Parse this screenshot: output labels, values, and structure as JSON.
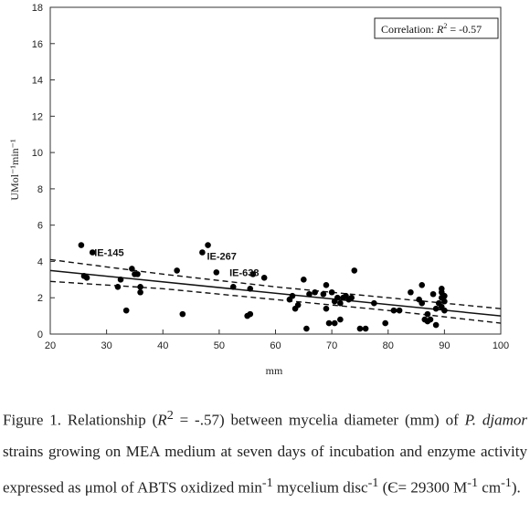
{
  "chart_data": {
    "type": "scatter",
    "xlabel": "mm",
    "ylabel": "UMol⁻¹min⁻¹",
    "xlim": [
      20,
      100
    ],
    "ylim": [
      0,
      18
    ],
    "xticks": [
      20,
      30,
      40,
      50,
      60,
      70,
      80,
      90,
      100
    ],
    "yticks": [
      0,
      2,
      4,
      6,
      8,
      10,
      12,
      14,
      16,
      18
    ],
    "grid": false,
    "annotation": {
      "prefix": "Correlation: ",
      "r2": "R",
      "sup": "2",
      "suffix": " = -0.57"
    },
    "fit_line": {
      "x": [
        20,
        100
      ],
      "y": [
        3.5,
        1.0
      ]
    },
    "ci_upper": {
      "x": [
        20,
        40,
        60,
        80,
        100
      ],
      "y": [
        4.1,
        3.3,
        2.6,
        2.0,
        1.4
      ]
    },
    "ci_lower": {
      "x": [
        20,
        40,
        60,
        80,
        100
      ],
      "y": [
        2.9,
        2.5,
        1.9,
        1.3,
        0.6
      ]
    },
    "point_labels": [
      {
        "text": "IE-145",
        "x": 27.5,
        "y": 4.5
      },
      {
        "text": "IE-267",
        "x": 47.5,
        "y": 4.3
      },
      {
        "text": "IE-638",
        "x": 51.5,
        "y": 3.4
      }
    ],
    "points": [
      [
        25.5,
        4.9
      ],
      [
        26,
        3.2
      ],
      [
        26.5,
        3.1
      ],
      [
        27.5,
        4.5
      ],
      [
        32,
        2.6
      ],
      [
        32.5,
        3.0
      ],
      [
        33.5,
        1.3
      ],
      [
        34.5,
        3.6
      ],
      [
        35,
        3.3
      ],
      [
        35.5,
        3.3
      ],
      [
        36,
        2.6
      ],
      [
        36,
        2.3
      ],
      [
        42.5,
        3.5
      ],
      [
        43.5,
        1.1
      ],
      [
        47,
        4.5
      ],
      [
        48,
        4.9
      ],
      [
        49.5,
        3.4
      ],
      [
        52.5,
        2.6
      ],
      [
        55,
        1.0
      ],
      [
        55.5,
        1.1
      ],
      [
        55.5,
        2.5
      ],
      [
        56,
        3.3
      ],
      [
        58,
        3.1
      ],
      [
        62.5,
        1.9
      ],
      [
        63,
        2.1
      ],
      [
        63.5,
        1.4
      ],
      [
        64,
        1.6
      ],
      [
        65,
        3.0
      ],
      [
        65.5,
        0.3
      ],
      [
        66,
        2.2
      ],
      [
        67,
        2.3
      ],
      [
        68.5,
        2.2
      ],
      [
        69,
        1.4
      ],
      [
        69,
        2.7
      ],
      [
        69.5,
        0.6
      ],
      [
        70,
        2.3
      ],
      [
        70.5,
        1.8
      ],
      [
        70.5,
        0.6
      ],
      [
        71,
        2.0
      ],
      [
        71.5,
        1.7
      ],
      [
        71.5,
        0.8
      ],
      [
        72,
        2.0
      ],
      [
        72.5,
        2.1
      ],
      [
        73,
        1.9
      ],
      [
        73.5,
        2.0
      ],
      [
        74,
        3.5
      ],
      [
        75,
        0.3
      ],
      [
        76,
        0.3
      ],
      [
        77.5,
        1.7
      ],
      [
        79.5,
        0.6
      ],
      [
        81,
        1.3
      ],
      [
        82,
        1.3
      ],
      [
        84,
        2.3
      ],
      [
        85.5,
        1.9
      ],
      [
        86,
        2.7
      ],
      [
        86,
        1.7
      ],
      [
        86.5,
        0.8
      ],
      [
        87,
        1.1
      ],
      [
        87,
        0.7
      ],
      [
        87.5,
        0.8
      ],
      [
        88,
        2.2
      ],
      [
        88.5,
        0.5
      ],
      [
        88.5,
        1.4
      ],
      [
        89,
        1.7
      ],
      [
        89.5,
        2.5
      ],
      [
        89.5,
        2.3
      ],
      [
        89.5,
        2.0
      ],
      [
        89.5,
        1.5
      ],
      [
        90,
        2.1
      ],
      [
        90,
        1.8
      ],
      [
        90,
        1.3
      ]
    ]
  },
  "caption": {
    "p1": "Figure 1. Relationship (",
    "r": "R",
    "sup": "2",
    "p2": " = -.57) between mycelia diameter (mm) of ",
    "italic1": "P. djamor",
    "p3": " strains growing on MEA medium at seven days of incubation and enzyme activity expressed as  μmol of ABTS oxidized min",
    "sup2": "-1",
    "p4": " mycelium disc",
    "sup3": "-1",
    "p5": " (Є= 29300 M",
    "sup4": "-1",
    "p6": " cm",
    "sup5": "-1",
    "p7": ")."
  }
}
